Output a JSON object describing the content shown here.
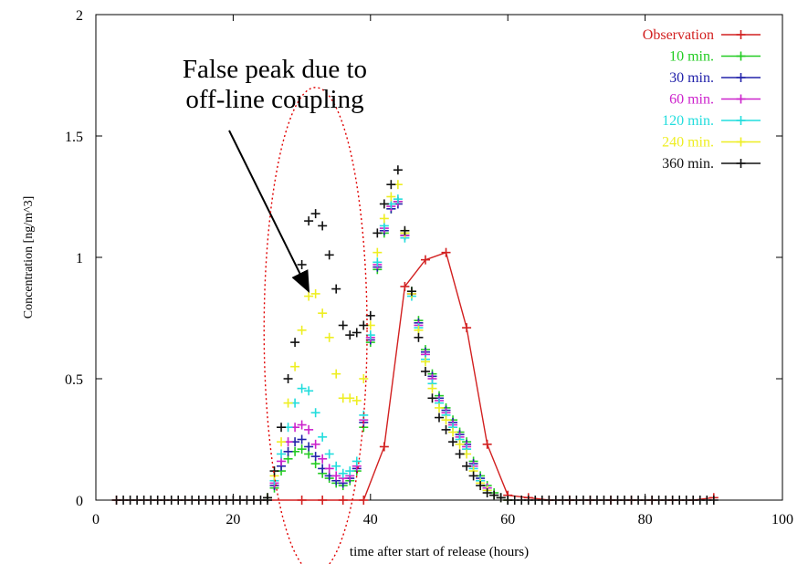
{
  "chart_data": {
    "type": "line",
    "xlabel": "time after start of release (hours)",
    "ylabel": "Concentration [ng/m^3]",
    "xlim": [
      0,
      100
    ],
    "ylim": [
      0,
      2
    ],
    "x_ticks": [
      "0",
      "20",
      "40",
      "60",
      "80",
      "100"
    ],
    "y_ticks": [
      "0",
      "0.5",
      "1",
      "1.5",
      "2"
    ],
    "grid": false,
    "legend_position": "top-right",
    "annotation": {
      "lines": [
        "False peak due to",
        "off-line coupling"
      ],
      "points_to": {
        "x": 31,
        "y": 0.86
      },
      "ellipse_center": {
        "x": 32,
        "y": 0.7
      },
      "ellipse_radii": {
        "x": 7.5,
        "y": 1.0
      },
      "color": "#000000",
      "ellipse_color": "#e00000"
    },
    "series": [
      {
        "name": "Observation",
        "color": "#d22020",
        "style": "line-points",
        "x": [
          3,
          30,
          33,
          36,
          39,
          42,
          45,
          48,
          51,
          54,
          57,
          60,
          63,
          66,
          69,
          72,
          75,
          78,
          81,
          84,
          87,
          90
        ],
        "y": [
          0,
          0,
          0,
          0,
          0,
          0.22,
          0.88,
          0.99,
          1.02,
          0.71,
          0.23,
          0.02,
          0.01,
          0,
          0,
          0,
          0,
          0,
          0,
          0,
          0,
          0.01
        ]
      },
      {
        "name": "10 min.",
        "color": "#22cc22",
        "style": "points",
        "x": [
          25,
          26,
          27,
          28,
          29,
          30,
          31,
          32,
          33,
          34,
          35,
          36,
          37,
          38,
          39,
          40,
          41,
          42,
          43,
          44,
          45,
          46,
          47,
          48,
          49,
          50,
          51,
          52,
          53,
          54,
          55,
          56,
          57,
          58,
          59,
          60
        ],
        "y": [
          0.01,
          0.05,
          0.12,
          0.17,
          0.2,
          0.21,
          0.19,
          0.15,
          0.11,
          0.09,
          0.07,
          0.06,
          0.08,
          0.12,
          0.3,
          0.65,
          0.95,
          1.1,
          1.2,
          1.23,
          1.1,
          0.86,
          0.74,
          0.62,
          0.52,
          0.43,
          0.38,
          0.33,
          0.28,
          0.24,
          0.16,
          0.1,
          0.06,
          0.03,
          0.01,
          0.0
        ]
      },
      {
        "name": "30 min.",
        "color": "#2222aa",
        "style": "points",
        "x": [
          25,
          26,
          27,
          28,
          29,
          30,
          31,
          32,
          33,
          34,
          35,
          36,
          37,
          38,
          39,
          40,
          41,
          42,
          43,
          44,
          45,
          46,
          47,
          48,
          49,
          50,
          51,
          52,
          53,
          54,
          55,
          56,
          57,
          58,
          59,
          60
        ],
        "y": [
          0.01,
          0.06,
          0.14,
          0.2,
          0.24,
          0.25,
          0.22,
          0.18,
          0.13,
          0.1,
          0.08,
          0.07,
          0.09,
          0.13,
          0.32,
          0.66,
          0.96,
          1.11,
          1.2,
          1.22,
          1.09,
          0.85,
          0.73,
          0.61,
          0.51,
          0.42,
          0.37,
          0.32,
          0.27,
          0.23,
          0.15,
          0.09,
          0.05,
          0.02,
          0.01,
          0.0
        ]
      },
      {
        "name": "60 min.",
        "color": "#cc22cc",
        "style": "points",
        "x": [
          25,
          26,
          27,
          28,
          29,
          30,
          31,
          32,
          33,
          34,
          35,
          36,
          37,
          38,
          39,
          40,
          41,
          42,
          43,
          44,
          45,
          46,
          47,
          48,
          49,
          50,
          51,
          52,
          53,
          54,
          55,
          56,
          57,
          58,
          59,
          60
        ],
        "y": [
          0.01,
          0.07,
          0.16,
          0.24,
          0.3,
          0.31,
          0.29,
          0.23,
          0.17,
          0.13,
          0.1,
          0.09,
          0.1,
          0.14,
          0.33,
          0.67,
          0.97,
          1.12,
          1.21,
          1.23,
          1.09,
          0.85,
          0.72,
          0.6,
          0.5,
          0.41,
          0.36,
          0.31,
          0.26,
          0.22,
          0.14,
          0.08,
          0.05,
          0.02,
          0.01,
          0.0
        ]
      },
      {
        "name": "120 min.",
        "color": "#22dddd",
        "style": "points",
        "x": [
          25,
          26,
          27,
          28,
          29,
          30,
          31,
          32,
          33,
          34,
          35,
          36,
          37,
          38,
          39,
          40,
          41,
          42,
          43,
          44,
          45,
          46,
          47,
          48,
          49,
          50,
          51,
          52,
          53,
          54,
          55,
          56,
          57,
          58,
          59,
          60
        ],
        "y": [
          0.01,
          0.08,
          0.19,
          0.3,
          0.4,
          0.46,
          0.45,
          0.36,
          0.26,
          0.19,
          0.14,
          0.11,
          0.12,
          0.16,
          0.35,
          0.68,
          0.98,
          1.13,
          1.22,
          1.24,
          1.08,
          0.84,
          0.71,
          0.58,
          0.48,
          0.4,
          0.35,
          0.3,
          0.25,
          0.21,
          0.13,
          0.08,
          0.04,
          0.02,
          0.01,
          0.0
        ]
      },
      {
        "name": "240 min.",
        "color": "#eeee22",
        "style": "points",
        "x": [
          25,
          26,
          27,
          28,
          29,
          30,
          31,
          32,
          33,
          34,
          35,
          36,
          37,
          38,
          39,
          40,
          41,
          42,
          43,
          44,
          45,
          46,
          47,
          48,
          49,
          50,
          51,
          52,
          53,
          54,
          55,
          56,
          57,
          58,
          59,
          60
        ],
        "y": [
          0.01,
          0.1,
          0.24,
          0.4,
          0.55,
          0.7,
          0.84,
          0.85,
          0.77,
          0.67,
          0.52,
          0.42,
          0.42,
          0.41,
          0.5,
          0.72,
          1.02,
          1.16,
          1.25,
          1.3,
          1.1,
          0.85,
          0.7,
          0.57,
          0.46,
          0.38,
          0.33,
          0.28,
          0.23,
          0.19,
          0.12,
          0.07,
          0.04,
          0.02,
          0.01,
          0.0
        ]
      },
      {
        "name": "360 min.",
        "color": "#111111",
        "style": "points",
        "x": [
          25,
          26,
          27,
          28,
          29,
          30,
          31,
          32,
          33,
          34,
          35,
          36,
          37,
          38,
          39,
          40,
          41,
          42,
          43,
          44,
          45,
          46,
          47,
          48,
          49,
          50,
          51,
          52,
          53,
          54,
          55,
          56,
          57,
          58,
          59,
          60
        ],
        "y": [
          0.01,
          0.12,
          0.3,
          0.5,
          0.65,
          0.97,
          1.15,
          1.18,
          1.13,
          1.01,
          0.87,
          0.72,
          0.68,
          0.69,
          0.72,
          0.76,
          1.1,
          1.22,
          1.3,
          1.36,
          1.11,
          0.86,
          0.67,
          0.53,
          0.42,
          0.34,
          0.29,
          0.24,
          0.19,
          0.14,
          0.1,
          0.06,
          0.03,
          0.02,
          0.01,
          0.0
        ]
      }
    ]
  }
}
